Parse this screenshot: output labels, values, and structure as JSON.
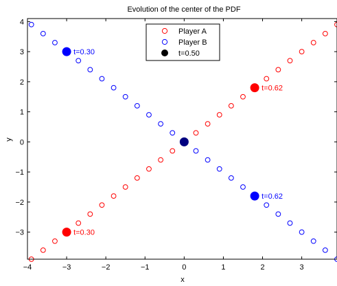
{
  "chart_data": {
    "type": "scatter",
    "title": "Evolution of the center of the PDF",
    "xlabel": "x",
    "ylabel": "y",
    "xlim": [
      -4,
      3.9
    ],
    "ylim": [
      -3.9,
      4.1
    ],
    "xticks": [
      -4,
      -3,
      -2,
      -1,
      0,
      1,
      2,
      3
    ],
    "yticks": [
      -3,
      -2,
      -1,
      0,
      1,
      2,
      3,
      4
    ],
    "xtick_labels": [
      "−4",
      "−3",
      "−2",
      "−1",
      "0",
      "1",
      "2",
      "3"
    ],
    "ytick_labels": [
      "−3",
      "−2",
      "−1",
      "0",
      "1",
      "2",
      "3",
      "4"
    ],
    "grid": false,
    "legend_position": "top-center",
    "series": [
      {
        "name": "Player A",
        "color": "#ff0000",
        "marker": "open-circle",
        "x": [
          -3.9,
          -3.6,
          -3.3,
          -3.0,
          -2.7,
          -2.4,
          -2.1,
          -1.8,
          -1.5,
          -1.2,
          -0.9,
          -0.6,
          -0.3,
          0.0,
          0.3,
          0.6,
          0.9,
          1.2,
          1.5,
          1.8,
          2.1,
          2.4,
          2.7,
          3.0,
          3.3,
          3.6,
          3.9
        ],
        "y": [
          -3.9,
          -3.6,
          -3.3,
          -3.0,
          -2.7,
          -2.4,
          -2.1,
          -1.8,
          -1.5,
          -1.2,
          -0.9,
          -0.6,
          -0.3,
          0.0,
          0.3,
          0.6,
          0.9,
          1.2,
          1.5,
          1.8,
          2.1,
          2.4,
          2.7,
          3.0,
          3.3,
          3.6,
          3.9
        ]
      },
      {
        "name": "Player B",
        "color": "#0000ff",
        "marker": "open-circle",
        "x": [
          -3.9,
          -3.6,
          -3.3,
          -3.0,
          -2.7,
          -2.4,
          -2.1,
          -1.8,
          -1.5,
          -1.2,
          -0.9,
          -0.6,
          -0.3,
          0.0,
          0.3,
          0.6,
          0.9,
          1.2,
          1.5,
          1.8,
          2.1,
          2.4,
          2.7,
          3.0,
          3.3,
          3.6,
          3.9
        ],
        "y": [
          3.9,
          3.6,
          3.3,
          3.0,
          2.7,
          2.4,
          2.1,
          1.8,
          1.5,
          1.2,
          0.9,
          0.6,
          0.3,
          0.0,
          -0.3,
          -0.6,
          -0.9,
          -1.2,
          -1.5,
          -1.8,
          -2.1,
          -2.4,
          -2.7,
          -3.0,
          -3.3,
          -3.6,
          -3.9
        ]
      }
    ],
    "legend_entries": [
      {
        "label": "Player A",
        "color": "#ff0000",
        "marker": "open-circle"
      },
      {
        "label": "Player B",
        "color": "#0000ff",
        "marker": "open-circle"
      },
      {
        "label": "t=0.50",
        "color": "#000000",
        "marker": "filled-circle"
      }
    ],
    "highlights": [
      {
        "x": -3.0,
        "y": 3.0,
        "color": "#0000ff",
        "label": "t=0.30"
      },
      {
        "x": -3.0,
        "y": -3.0,
        "color": "#ff0000",
        "label": "t=0.30"
      },
      {
        "x": 1.8,
        "y": 1.8,
        "color": "#ff0000",
        "label": "t=0.62"
      },
      {
        "x": 1.8,
        "y": -1.8,
        "color": "#0000ff",
        "label": "t=0.62"
      },
      {
        "x": 0.0,
        "y": 0.0,
        "color": "#000080",
        "label": ""
      }
    ]
  }
}
